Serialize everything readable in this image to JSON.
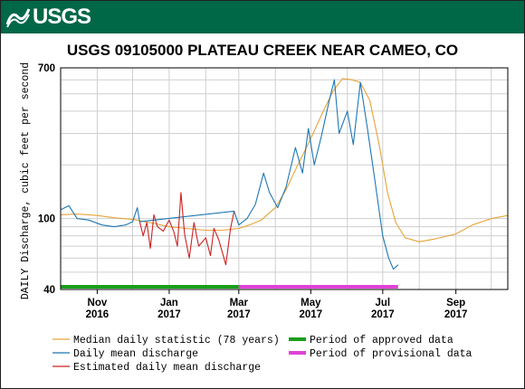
{
  "header": {
    "agency": "USGS",
    "brand_color": "#006747"
  },
  "chart_data": {
    "type": "line",
    "title": "USGS 09105000 PLATEAU CREEK NEAR CAMEO, CO",
    "ylabel": "DAILY Discharge, cubic feet per second",
    "xlabel": "",
    "y_scale": "log",
    "ylim": [
      40,
      700
    ],
    "y_ticks": [
      {
        "value": 100,
        "label": "100"
      },
      {
        "value": 700,
        "label": "700"
      },
      {
        "value": 40,
        "label": "40"
      }
    ],
    "xlim": [
      "2016-10-01",
      "2017-10-15"
    ],
    "x_ticks": [
      {
        "date": "2016-11-01",
        "month": "Nov",
        "year": "2016"
      },
      {
        "date": "2017-01-01",
        "month": "Jan",
        "year": "2017"
      },
      {
        "date": "2017-03-01",
        "month": "Mar",
        "year": "2017"
      },
      {
        "date": "2017-05-01",
        "month": "May",
        "year": "2017"
      },
      {
        "date": "2017-07-01",
        "month": "Jul",
        "year": "2017"
      },
      {
        "date": "2017-09-01",
        "month": "Sep",
        "year": "2017"
      }
    ],
    "grid": true,
    "legend_position": "bottom",
    "series": [
      {
        "name": "Median daily statistic (78 years)",
        "color": "#e8a33a",
        "points": [
          [
            "2016-10-01",
            105
          ],
          [
            "2016-10-15",
            106
          ],
          [
            "2016-11-01",
            104
          ],
          [
            "2016-11-15",
            101
          ],
          [
            "2016-12-01",
            99
          ],
          [
            "2016-12-15",
            95
          ],
          [
            "2017-01-01",
            90
          ],
          [
            "2017-01-15",
            88
          ],
          [
            "2017-02-01",
            86
          ],
          [
            "2017-02-15",
            86
          ],
          [
            "2017-03-01",
            88
          ],
          [
            "2017-03-10",
            92
          ],
          [
            "2017-03-20",
            98
          ],
          [
            "2017-04-01",
            115
          ],
          [
            "2017-04-10",
            145
          ],
          [
            "2017-04-20",
            200
          ],
          [
            "2017-05-01",
            280
          ],
          [
            "2017-05-10",
            380
          ],
          [
            "2017-05-20",
            520
          ],
          [
            "2017-05-28",
            610
          ],
          [
            "2017-06-05",
            600
          ],
          [
            "2017-06-12",
            580
          ],
          [
            "2017-06-20",
            460
          ],
          [
            "2017-06-28",
            260
          ],
          [
            "2017-07-05",
            140
          ],
          [
            "2017-07-12",
            95
          ],
          [
            "2017-07-20",
            78
          ],
          [
            "2017-08-01",
            74
          ],
          [
            "2017-08-15",
            77
          ],
          [
            "2017-09-01",
            82
          ],
          [
            "2017-09-15",
            92
          ],
          [
            "2017-10-01",
            100
          ],
          [
            "2017-10-15",
            104
          ]
        ]
      },
      {
        "name": "Daily mean discharge",
        "color": "#1f77b4",
        "points": [
          [
            "2016-10-01",
            112
          ],
          [
            "2016-10-08",
            118
          ],
          [
            "2016-10-15",
            100
          ],
          [
            "2016-10-25",
            98
          ],
          [
            "2016-11-05",
            92
          ],
          [
            "2016-11-15",
            90
          ],
          [
            "2016-11-25",
            92
          ],
          [
            "2016-12-01",
            96
          ],
          [
            "2016-12-05",
            115
          ],
          [
            "2016-12-07",
            96
          ],
          [
            "2017-02-25",
            110
          ],
          [
            "2017-03-01",
            92
          ],
          [
            "2017-03-08",
            100
          ],
          [
            "2017-03-15",
            120
          ],
          [
            "2017-03-22",
            180
          ],
          [
            "2017-03-27",
            140
          ],
          [
            "2017-04-03",
            115
          ],
          [
            "2017-04-10",
            150
          ],
          [
            "2017-04-18",
            250
          ],
          [
            "2017-04-24",
            180
          ],
          [
            "2017-04-29",
            320
          ],
          [
            "2017-05-04",
            200
          ],
          [
            "2017-05-10",
            290
          ],
          [
            "2017-05-17",
            470
          ],
          [
            "2017-05-21",
            600
          ],
          [
            "2017-05-25",
            300
          ],
          [
            "2017-06-01",
            400
          ],
          [
            "2017-06-06",
            260
          ],
          [
            "2017-06-12",
            580
          ],
          [
            "2017-06-18",
            320
          ],
          [
            "2017-06-24",
            170
          ],
          [
            "2017-07-01",
            80
          ],
          [
            "2017-07-06",
            60
          ],
          [
            "2017-07-10",
            52
          ],
          [
            "2017-07-14",
            55
          ]
        ]
      },
      {
        "name": "Estimated daily mean discharge",
        "color": "#cc2222",
        "points": [
          [
            "2016-12-07",
            96
          ],
          [
            "2016-12-10",
            80
          ],
          [
            "2016-12-13",
            95
          ],
          [
            "2016-12-16",
            68
          ],
          [
            "2016-12-19",
            105
          ],
          [
            "2016-12-22",
            90
          ],
          [
            "2016-12-27",
            85
          ],
          [
            "2017-01-01",
            98
          ],
          [
            "2017-01-05",
            84
          ],
          [
            "2017-01-08",
            70
          ],
          [
            "2017-01-11",
            140
          ],
          [
            "2017-01-14",
            82
          ],
          [
            "2017-01-18",
            60
          ],
          [
            "2017-01-22",
            95
          ],
          [
            "2017-01-26",
            70
          ],
          [
            "2017-02-01",
            78
          ],
          [
            "2017-02-05",
            62
          ],
          [
            "2017-02-08",
            88
          ],
          [
            "2017-02-12",
            76
          ],
          [
            "2017-02-18",
            55
          ],
          [
            "2017-02-22",
            88
          ],
          [
            "2017-02-25",
            110
          ]
        ]
      }
    ],
    "periods": [
      {
        "name": "Period of approved data",
        "color": "#1a9e1a",
        "start": "2016-10-01",
        "end": "2017-03-01"
      },
      {
        "name": "Period of provisional data",
        "color": "#e042d6",
        "start": "2017-03-01",
        "end": "2017-07-14"
      }
    ]
  }
}
